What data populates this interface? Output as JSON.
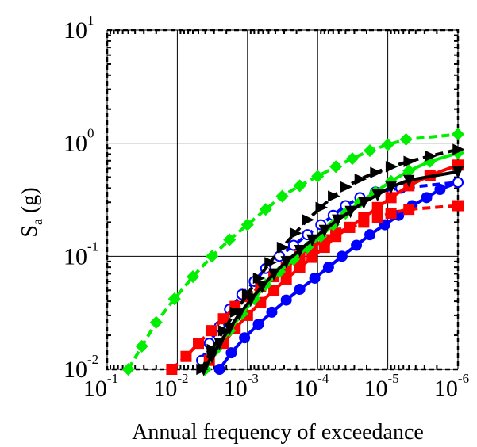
{
  "chart_data": {
    "type": "line",
    "title": "",
    "xlabel": "Annual frequency of exceedance",
    "ylabel": {
      "main": "S",
      "sub": "a",
      "rest": " (g)"
    },
    "x_scale": "log",
    "y_scale": "log",
    "x_reversed": true,
    "xlim": [
      0.1,
      1e-06
    ],
    "ylim": [
      0.01,
      10
    ],
    "grid": true,
    "legend": "none",
    "x_ticks": [
      {
        "base": "10",
        "exp": "-1",
        "value": 0.1
      },
      {
        "base": "10",
        "exp": "-2",
        "value": 0.01
      },
      {
        "base": "10",
        "exp": "-3",
        "value": 0.001
      },
      {
        "base": "10",
        "exp": "-4",
        "value": 0.0001
      },
      {
        "base": "10",
        "exp": "-5",
        "value": 1e-05
      },
      {
        "base": "10",
        "exp": "-6",
        "value": 1e-06
      }
    ],
    "y_ticks": [
      {
        "base": "10",
        "exp": "-2",
        "value": 0.01
      },
      {
        "base": "10",
        "exp": "-1",
        "value": 0.1
      },
      {
        "base": "10",
        "exp": "0",
        "value": 1
      },
      {
        "base": "10",
        "exp": "1",
        "value": 10
      }
    ],
    "series": [
      {
        "color": "#00ee00",
        "dash": "dashed",
        "marker": "diamond",
        "marker_fill": "filled",
        "points": [
          [
            0.05,
            0.01
          ],
          [
            0.032,
            0.016
          ],
          [
            0.02,
            0.026
          ],
          [
            0.011,
            0.042
          ],
          [
            0.006,
            0.066
          ],
          [
            0.0032,
            0.1
          ],
          [
            0.0018,
            0.14
          ],
          [
            0.001,
            0.19
          ],
          [
            0.00055,
            0.26
          ],
          [
            0.00032,
            0.34
          ],
          [
            0.00018,
            0.42
          ],
          [
            0.0001,
            0.51
          ],
          [
            5.5e-05,
            0.62
          ],
          [
            3.2e-05,
            0.73
          ],
          [
            1.8e-05,
            0.86
          ],
          [
            1e-05,
            0.97
          ],
          [
            5.5e-06,
            1.08
          ],
          [
            1e-06,
            1.2
          ]
        ]
      },
      {
        "color": "#0000ff",
        "dash": "solid",
        "marker": "circle",
        "marker_fill": "filled",
        "points": [
          [
            0.0025,
            0.01
          ],
          [
            0.0017,
            0.014
          ],
          [
            0.0011,
            0.019
          ],
          [
            0.0007,
            0.025
          ],
          [
            0.00045,
            0.032
          ],
          [
            0.00028,
            0.041
          ],
          [
            0.00018,
            0.051
          ],
          [
            0.00011,
            0.064
          ],
          [
            7e-05,
            0.08
          ],
          [
            4.5e-05,
            0.1
          ],
          [
            2.8e-05,
            0.125
          ],
          [
            1.8e-05,
            0.155
          ],
          [
            1.1e-05,
            0.19
          ],
          [
            7e-06,
            0.23
          ],
          [
            4.5e-06,
            0.28
          ],
          [
            2.8e-06,
            0.33
          ],
          [
            1.8e-06,
            0.39
          ],
          [
            1e-06,
            0.45
          ]
        ]
      },
      {
        "color": "#0000ff",
        "dash": "dashed",
        "marker": "circle",
        "marker_fill": "open",
        "points": [
          [
            0.0045,
            0.012
          ],
          [
            0.0035,
            0.017
          ],
          [
            0.0025,
            0.024
          ],
          [
            0.0018,
            0.034
          ],
          [
            0.0012,
            0.046
          ],
          [
            0.0008,
            0.06
          ],
          [
            0.00055,
            0.078
          ],
          [
            0.00035,
            0.1
          ],
          [
            0.00022,
            0.125
          ],
          [
            0.00014,
            0.155
          ],
          [
            9e-05,
            0.19
          ],
          [
            6e-05,
            0.23
          ],
          [
            4e-05,
            0.28
          ],
          [
            2.5e-05,
            0.33
          ],
          [
            1.5e-05,
            0.37
          ],
          [
            6.5e-06,
            0.4
          ],
          [
            1e-06,
            0.45
          ]
        ]
      },
      {
        "color": "#ff0000",
        "dash": "dashed",
        "marker": "square",
        "marker_fill": "filled",
        "points": [
          [
            0.012,
            0.01
          ],
          [
            0.0075,
            0.013
          ],
          [
            0.005,
            0.017
          ],
          [
            0.0033,
            0.022
          ],
          [
            0.0022,
            0.028
          ],
          [
            0.0015,
            0.036
          ],
          [
            0.001,
            0.044
          ],
          [
            0.00065,
            0.054
          ],
          [
            0.00042,
            0.066
          ],
          [
            0.00028,
            0.08
          ],
          [
            0.00018,
            0.1
          ],
          [
            0.00012,
            0.12
          ],
          [
            8e-05,
            0.14
          ],
          [
            5.5e-05,
            0.16
          ],
          [
            3.5e-05,
            0.18
          ],
          [
            2.2e-05,
            0.2
          ],
          [
            1.4e-05,
            0.22
          ],
          [
            9e-06,
            0.24
          ],
          [
            5e-06,
            0.26
          ],
          [
            1e-06,
            0.28
          ]
        ]
      },
      {
        "color": "#ff0000",
        "dash": "solid",
        "marker": "square",
        "marker_fill": "filled",
        "points": [
          [
            0.0035,
            0.012
          ],
          [
            0.0022,
            0.017
          ],
          [
            0.0015,
            0.023
          ],
          [
            0.001,
            0.03
          ],
          [
            0.00065,
            0.039
          ],
          [
            0.00042,
            0.05
          ],
          [
            0.00028,
            0.063
          ],
          [
            0.00018,
            0.079
          ],
          [
            0.00012,
            0.098
          ],
          [
            8e-05,
            0.12
          ],
          [
            5.5e-05,
            0.15
          ],
          [
            3.5e-05,
            0.18
          ],
          [
            2.2e-05,
            0.22
          ],
          [
            1.4e-05,
            0.27
          ],
          [
            9e-06,
            0.33
          ],
          [
            5e-06,
            0.42
          ],
          [
            2.5e-06,
            0.52
          ],
          [
            1e-06,
            0.64
          ]
        ]
      },
      {
        "color": "#00ee00",
        "dash": "solid",
        "marker": "diamond",
        "marker_fill": "filled",
        "points": [
          [
            0.004,
            0.01
          ],
          [
            0.0028,
            0.015
          ],
          [
            0.0018,
            0.022
          ],
          [
            0.0012,
            0.031
          ],
          [
            0.0008,
            0.042
          ],
          [
            0.00055,
            0.056
          ],
          [
            0.00035,
            0.073
          ],
          [
            0.00022,
            0.094
          ],
          [
            0.00014,
            0.12
          ],
          [
            9e-05,
            0.15
          ],
          [
            6e-05,
            0.19
          ],
          [
            4e-05,
            0.24
          ],
          [
            2.5e-05,
            0.3
          ],
          [
            1.5e-05,
            0.37
          ],
          [
            9e-06,
            0.46
          ],
          [
            5e-06,
            0.57
          ],
          [
            2.5e-06,
            0.69
          ],
          [
            1e-06,
            0.82
          ]
        ]
      },
      {
        "color": "#000000",
        "dash": "dashed",
        "marker": "triangle-right",
        "marker_fill": "filled",
        "points": [
          [
            0.0045,
            0.01
          ],
          [
            0.0032,
            0.015
          ],
          [
            0.0022,
            0.022
          ],
          [
            0.0015,
            0.032
          ],
          [
            0.001,
            0.046
          ],
          [
            0.0007,
            0.064
          ],
          [
            0.00048,
            0.088
          ],
          [
            0.00032,
            0.12
          ],
          [
            0.00021,
            0.16
          ],
          [
            0.00014,
            0.21
          ],
          [
            9e-05,
            0.27
          ],
          [
            6e-05,
            0.34
          ],
          [
            4e-05,
            0.41
          ],
          [
            2.5e-05,
            0.48
          ],
          [
            1.5e-05,
            0.55
          ],
          [
            9e-06,
            0.62
          ],
          [
            5e-06,
            0.69
          ],
          [
            2.5e-06,
            0.77
          ],
          [
            1e-06,
            0.88
          ]
        ]
      },
      {
        "color": "#000000",
        "dash": "solid",
        "marker": "triangle-down",
        "marker_fill": "filled",
        "points": [
          [
            0.0042,
            0.01
          ],
          [
            0.0032,
            0.013
          ],
          [
            0.0025,
            0.017
          ],
          [
            0.0018,
            0.023
          ],
          [
            0.0013,
            0.031
          ],
          [
            0.0009,
            0.041
          ],
          [
            0.00062,
            0.054
          ],
          [
            0.00042,
            0.07
          ],
          [
            0.00028,
            0.09
          ],
          [
            0.00018,
            0.113
          ],
          [
            0.00012,
            0.14
          ],
          [
            8e-05,
            0.17
          ],
          [
            5.2e-05,
            0.21
          ],
          [
            3.4e-05,
            0.25
          ],
          [
            2.2e-05,
            0.3
          ],
          [
            1.4e-05,
            0.35
          ],
          [
            9e-06,
            0.41
          ],
          [
            5e-06,
            0.47
          ],
          [
            1e-06,
            0.56
          ]
        ]
      }
    ]
  }
}
